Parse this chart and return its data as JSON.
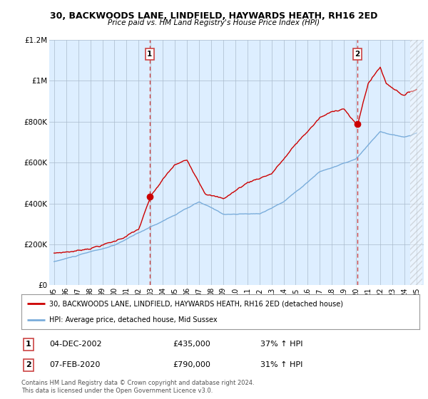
{
  "title1": "30, BACKWOODS LANE, LINDFIELD, HAYWARDS HEATH, RH16 2ED",
  "title2": "Price paid vs. HM Land Registry's House Price Index (HPI)",
  "legend_red": "30, BACKWOODS LANE, LINDFIELD, HAYWARDS HEATH, RH16 2ED (detached house)",
  "legend_blue": "HPI: Average price, detached house, Mid Sussex",
  "transaction1_date": "04-DEC-2002",
  "transaction1_price": "£435,000",
  "transaction1_hpi": "37% ↑ HPI",
  "transaction2_date": "07-FEB-2020",
  "transaction2_price": "£790,000",
  "transaction2_hpi": "31% ↑ HPI",
  "footnote": "Contains HM Land Registry data © Crown copyright and database right 2024.\nThis data is licensed under the Open Government Licence v3.0.",
  "ylim": [
    0,
    1200000
  ],
  "yticks": [
    0,
    200000,
    400000,
    600000,
    800000,
    1000000,
    1200000
  ],
  "ytick_labels": [
    "£0",
    "£200K",
    "£400K",
    "£600K",
    "£800K",
    "£1M",
    "£1.2M"
  ],
  "red_color": "#cc0000",
  "blue_color": "#7aaddb",
  "vline_color": "#cc4444",
  "bg_color": "#ddeeff",
  "grid_color": "#aabbcc",
  "transaction1_x": 2002.92,
  "transaction1_y": 435000,
  "transaction2_x": 2020.1,
  "transaction2_y": 790000,
  "xtick_years": [
    1995,
    1996,
    1997,
    1998,
    1999,
    2000,
    2001,
    2002,
    2003,
    2004,
    2005,
    2006,
    2007,
    2008,
    2009,
    2010,
    2011,
    2012,
    2013,
    2014,
    2015,
    2016,
    2017,
    2018,
    2019,
    2020,
    2021,
    2022,
    2023,
    2024,
    2025
  ]
}
